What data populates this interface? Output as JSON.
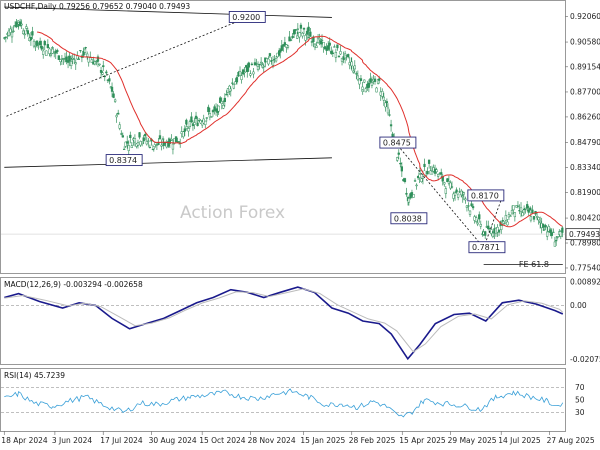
{
  "chart_data": [
    {
      "type": "candlestick",
      "panel": "price",
      "header": "USDCHF,Daily  0.79256 0.79652 0.79040 0.79493",
      "watermark": "Action Forex",
      "y_ticks": [
        "0.92060",
        "0.90580",
        "0.89154",
        "0.87700",
        "0.86260",
        "0.84790",
        "0.83340",
        "0.81900",
        "0.80420",
        "0.78980",
        "0.77540"
      ],
      "ylim": [
        0.7725,
        0.9295
      ],
      "last_price": "0.79493",
      "indicators": [
        {
          "name": "moving-average",
          "color": "#e0302c"
        }
      ],
      "annotations": [
        {
          "text": "0.9200",
          "date": "2024-11-25",
          "price": 0.92
        },
        {
          "text": "0.8374",
          "date": "2024-08-05",
          "price": 0.8374
        },
        {
          "text": "0.8038",
          "date": "2025-04-21",
          "price": 0.8038
        },
        {
          "text": "0.8475",
          "date": "2025-04-11",
          "price": 0.8475
        },
        {
          "text": "0.8170",
          "date": "2025-06-30",
          "price": 0.817
        },
        {
          "text": "0.7871",
          "date": "2025-07-01",
          "price": 0.7871
        },
        {
          "text": "FE 61.8",
          "date": "2025-08-15",
          "price": 0.7775
        }
      ],
      "trendlines": [
        {
          "style": "solid",
          "from": {
            "date": "2024-04-18",
            "price": 0.926
          },
          "to": {
            "date": "2025-02-10",
            "price": 0.92
          }
        },
        {
          "style": "solid",
          "from": {
            "date": "2024-04-18",
            "price": 0.8335
          },
          "to": {
            "date": "2025-02-10",
            "price": 0.839
          }
        },
        {
          "style": "dashed",
          "from": {
            "date": "2024-04-20",
            "price": 0.863
          },
          "to": {
            "date": "2024-11-25",
            "price": 0.92
          }
        },
        {
          "style": "dashed",
          "from": {
            "date": "2025-04-11",
            "price": 0.846
          },
          "to": {
            "date": "2025-06-28",
            "price": 0.7871
          }
        },
        {
          "style": "dashed",
          "from": {
            "date": "2025-06-28",
            "price": 0.7871
          },
          "to": {
            "date": "2025-07-15",
            "price": 0.8165
          }
        },
        {
          "style": "solid",
          "from": {
            "date": "2025-06-28",
            "price": 0.7775
          },
          "to": {
            "date": "2025-09-08",
            "price": 0.7775
          }
        }
      ],
      "key_points": [
        {
          "date": "2024-04-18",
          "close": 0.908
        },
        {
          "date": "2024-05-01",
          "close": 0.918
        },
        {
          "date": "2024-05-15",
          "close": 0.906
        },
        {
          "date": "2024-06-01",
          "close": 0.901
        },
        {
          "date": "2024-06-15",
          "close": 0.894
        },
        {
          "date": "2024-07-01",
          "close": 0.9
        },
        {
          "date": "2024-07-17",
          "close": 0.889
        },
        {
          "date": "2024-07-25",
          "close": 0.878
        },
        {
          "date": "2024-08-05",
          "close": 0.847
        },
        {
          "date": "2024-08-20",
          "close": 0.851
        },
        {
          "date": "2024-09-01",
          "close": 0.846
        },
        {
          "date": "2024-09-10",
          "close": 0.848
        },
        {
          "date": "2024-09-25",
          "close": 0.85
        },
        {
          "date": "2024-10-01",
          "close": 0.856
        },
        {
          "date": "2024-10-15",
          "close": 0.862
        },
        {
          "date": "2024-10-30",
          "close": 0.866
        },
        {
          "date": "2024-11-10",
          "close": 0.881
        },
        {
          "date": "2024-11-25",
          "close": 0.89
        },
        {
          "date": "2024-12-10",
          "close": 0.892
        },
        {
          "date": "2024-12-25",
          "close": 0.9
        },
        {
          "date": "2025-01-10",
          "close": 0.912
        },
        {
          "date": "2025-01-20",
          "close": 0.91
        },
        {
          "date": "2025-02-01",
          "close": 0.904
        },
        {
          "date": "2025-02-15",
          "close": 0.9
        },
        {
          "date": "2025-02-28",
          "close": 0.893
        },
        {
          "date": "2025-03-10",
          "close": 0.881
        },
        {
          "date": "2025-03-25",
          "close": 0.882
        },
        {
          "date": "2025-04-02",
          "close": 0.866
        },
        {
          "date": "2025-04-09",
          "close": 0.845
        },
        {
          "date": "2025-04-21",
          "close": 0.815
        },
        {
          "date": "2025-05-01",
          "close": 0.829
        },
        {
          "date": "2025-05-12",
          "close": 0.834
        },
        {
          "date": "2025-05-26",
          "close": 0.823
        },
        {
          "date": "2025-06-10",
          "close": 0.817
        },
        {
          "date": "2025-06-28",
          "close": 0.796
        },
        {
          "date": "2025-07-14",
          "close": 0.799
        },
        {
          "date": "2025-07-25",
          "close": 0.809
        },
        {
          "date": "2025-08-10",
          "close": 0.807
        },
        {
          "date": "2025-08-22",
          "close": 0.8
        },
        {
          "date": "2025-09-02",
          "close": 0.792
        },
        {
          "date": "2025-09-08",
          "close": 0.795
        }
      ]
    },
    {
      "type": "line",
      "panel": "macd",
      "header": "MACD(12,26,9) -0.003294 -0.002658",
      "y_ticks": [
        "0.008923",
        "0.00",
        "-0.020759"
      ],
      "ylim": [
        -0.0225,
        0.0105
      ],
      "series": [
        {
          "name": "MACD",
          "color": "#1a1a8c",
          "points": [
            {
              "date": "2024-04-18",
              "value": 0.003
            },
            {
              "date": "2024-05-01",
              "value": 0.0045
            },
            {
              "date": "2024-05-20",
              "value": 0.0015
            },
            {
              "date": "2024-06-10",
              "value": -0.001
            },
            {
              "date": "2024-06-25",
              "value": 0.001
            },
            {
              "date": "2024-07-10",
              "value": 0.0
            },
            {
              "date": "2024-07-25",
              "value": -0.005
            },
            {
              "date": "2024-08-10",
              "value": -0.009
            },
            {
              "date": "2024-08-25",
              "value": -0.007
            },
            {
              "date": "2024-09-10",
              "value": -0.005
            },
            {
              "date": "2024-09-25",
              "value": -0.002
            },
            {
              "date": "2024-10-10",
              "value": 0.001
            },
            {
              "date": "2024-10-25",
              "value": 0.003
            },
            {
              "date": "2024-11-10",
              "value": 0.006
            },
            {
              "date": "2024-11-25",
              "value": 0.005
            },
            {
              "date": "2024-12-10",
              "value": 0.003
            },
            {
              "date": "2024-12-25",
              "value": 0.005
            },
            {
              "date": "2025-01-10",
              "value": 0.007
            },
            {
              "date": "2025-01-25",
              "value": 0.005
            },
            {
              "date": "2025-02-10",
              "value": -0.001
            },
            {
              "date": "2025-02-25",
              "value": -0.003
            },
            {
              "date": "2025-03-10",
              "value": -0.006
            },
            {
              "date": "2025-03-25",
              "value": -0.007
            },
            {
              "date": "2025-04-05",
              "value": -0.011
            },
            {
              "date": "2025-04-20",
              "value": -0.0205
            },
            {
              "date": "2025-05-01",
              "value": -0.015
            },
            {
              "date": "2025-05-15",
              "value": -0.007
            },
            {
              "date": "2025-06-01",
              "value": -0.0035
            },
            {
              "date": "2025-06-15",
              "value": -0.003
            },
            {
              "date": "2025-06-30",
              "value": -0.006
            },
            {
              "date": "2025-07-15",
              "value": 0.001
            },
            {
              "date": "2025-07-30",
              "value": 0.002
            },
            {
              "date": "2025-08-15",
              "value": 0.0005
            },
            {
              "date": "2025-09-01",
              "value": -0.002
            },
            {
              "date": "2025-09-08",
              "value": -0.0033
            }
          ]
        },
        {
          "name": "Signal",
          "color": "#bbbbbb",
          "points": [
            {
              "date": "2024-04-18",
              "value": 0.0028
            },
            {
              "date": "2024-05-05",
              "value": 0.0038
            },
            {
              "date": "2024-05-25",
              "value": 0.002
            },
            {
              "date": "2024-06-15",
              "value": -0.0002
            },
            {
              "date": "2024-06-30",
              "value": 0.0008
            },
            {
              "date": "2024-07-15",
              "value": -0.0005
            },
            {
              "date": "2024-07-30",
              "value": -0.004
            },
            {
              "date": "2024-08-15",
              "value": -0.0078
            },
            {
              "date": "2024-08-30",
              "value": -0.0068
            },
            {
              "date": "2024-09-15",
              "value": -0.0048
            },
            {
              "date": "2024-09-30",
              "value": -0.0018
            },
            {
              "date": "2024-10-15",
              "value": 0.0009
            },
            {
              "date": "2024-10-30",
              "value": 0.0028
            },
            {
              "date": "2024-11-15",
              "value": 0.0052
            },
            {
              "date": "2024-11-30",
              "value": 0.0049
            },
            {
              "date": "2024-12-15",
              "value": 0.0034
            },
            {
              "date": "2024-12-30",
              "value": 0.0048
            },
            {
              "date": "2025-01-15",
              "value": 0.0063
            },
            {
              "date": "2025-01-30",
              "value": 0.0046
            },
            {
              "date": "2025-02-15",
              "value": 0.0002
            },
            {
              "date": "2025-03-01",
              "value": -0.0025
            },
            {
              "date": "2025-03-15",
              "value": -0.0052
            },
            {
              "date": "2025-03-30",
              "value": -0.0068
            },
            {
              "date": "2025-04-10",
              "value": -0.0098
            },
            {
              "date": "2025-04-25",
              "value": -0.0178
            },
            {
              "date": "2025-05-06",
              "value": -0.0148
            },
            {
              "date": "2025-05-20",
              "value": -0.0082
            },
            {
              "date": "2025-06-05",
              "value": -0.0042
            },
            {
              "date": "2025-06-20",
              "value": -0.0033
            },
            {
              "date": "2025-07-05",
              "value": -0.0052
            },
            {
              "date": "2025-07-20",
              "value": 0.0002
            },
            {
              "date": "2025-08-04",
              "value": 0.0017
            },
            {
              "date": "2025-08-20",
              "value": 0.0008
            },
            {
              "date": "2025-09-05",
              "value": -0.0015
            },
            {
              "date": "2025-09-08",
              "value": -0.0027
            }
          ]
        }
      ]
    },
    {
      "type": "line",
      "panel": "rsi",
      "header": "RSI(14) 45.7239",
      "y_ticks": [
        "70",
        "50",
        "30"
      ],
      "ylim": [
        0,
        100
      ],
      "levels": [
        70,
        30
      ],
      "series": [
        {
          "name": "RSI",
          "color": "#3aa0d8",
          "points": [
            {
              "date": "2024-04-18",
              "value": 52
            },
            {
              "date": "2024-05-01",
              "value": 60
            },
            {
              "date": "2024-05-15",
              "value": 45
            },
            {
              "date": "2024-06-01",
              "value": 40
            },
            {
              "date": "2024-06-15",
              "value": 48
            },
            {
              "date": "2024-07-01",
              "value": 55
            },
            {
              "date": "2024-07-17",
              "value": 42
            },
            {
              "date": "2024-08-05",
              "value": 30
            },
            {
              "date": "2024-08-20",
              "value": 45
            },
            {
              "date": "2024-09-05",
              "value": 43
            },
            {
              "date": "2024-09-20",
              "value": 50
            },
            {
              "date": "2024-10-05",
              "value": 55
            },
            {
              "date": "2024-10-20",
              "value": 58
            },
            {
              "date": "2024-11-05",
              "value": 62
            },
            {
              "date": "2024-11-20",
              "value": 55
            },
            {
              "date": "2024-12-05",
              "value": 52
            },
            {
              "date": "2024-12-20",
              "value": 60
            },
            {
              "date": "2025-01-05",
              "value": 64
            },
            {
              "date": "2025-01-20",
              "value": 55
            },
            {
              "date": "2025-02-05",
              "value": 42
            },
            {
              "date": "2025-02-20",
              "value": 44
            },
            {
              "date": "2025-03-05",
              "value": 38
            },
            {
              "date": "2025-03-20",
              "value": 48
            },
            {
              "date": "2025-04-02",
              "value": 38
            },
            {
              "date": "2025-04-12",
              "value": 22
            },
            {
              "date": "2025-04-22",
              "value": 28
            },
            {
              "date": "2025-05-05",
              "value": 50
            },
            {
              "date": "2025-05-20",
              "value": 45
            },
            {
              "date": "2025-06-05",
              "value": 42
            },
            {
              "date": "2025-06-25",
              "value": 35
            },
            {
              "date": "2025-07-10",
              "value": 55
            },
            {
              "date": "2025-07-25",
              "value": 62
            },
            {
              "date": "2025-08-10",
              "value": 55
            },
            {
              "date": "2025-08-25",
              "value": 48
            },
            {
              "date": "2025-09-02",
              "value": 40
            },
            {
              "date": "2025-09-08",
              "value": 45.7
            }
          ]
        }
      ]
    }
  ],
  "x_ticks": [
    {
      "label": "18 Apr 2024",
      "date": "2024-04-18"
    },
    {
      "label": "3 Jun 2024",
      "date": "2024-06-03"
    },
    {
      "label": "17 Jul 2024",
      "date": "2024-07-17"
    },
    {
      "label": "30 Aug 2024",
      "date": "2024-08-30"
    },
    {
      "label": "15 Oct 2024",
      "date": "2024-10-15"
    },
    {
      "label": "28 Nov 2024",
      "date": "2024-11-28"
    },
    {
      "label": "15 Jan 2025",
      "date": "2025-01-15"
    },
    {
      "label": "28 Feb 2025",
      "date": "2025-02-28"
    },
    {
      "label": "15 Apr 2025",
      "date": "2025-04-15"
    },
    {
      "label": "29 May 2025",
      "date": "2025-05-29"
    },
    {
      "label": "14 Jul 2025",
      "date": "2025-07-14"
    },
    {
      "label": "27 Aug 2025",
      "date": "2025-08-27"
    }
  ],
  "x_range": [
    "2024-04-15",
    "2025-09-10"
  ],
  "colors": {
    "up": "#2f8f5a",
    "down": "#2f8f5a",
    "ma": "#e0302c",
    "macd": "#1a1a8c",
    "signal": "#bbbbbb",
    "rsi": "#3aa0d8",
    "grid": "#cccccc"
  }
}
